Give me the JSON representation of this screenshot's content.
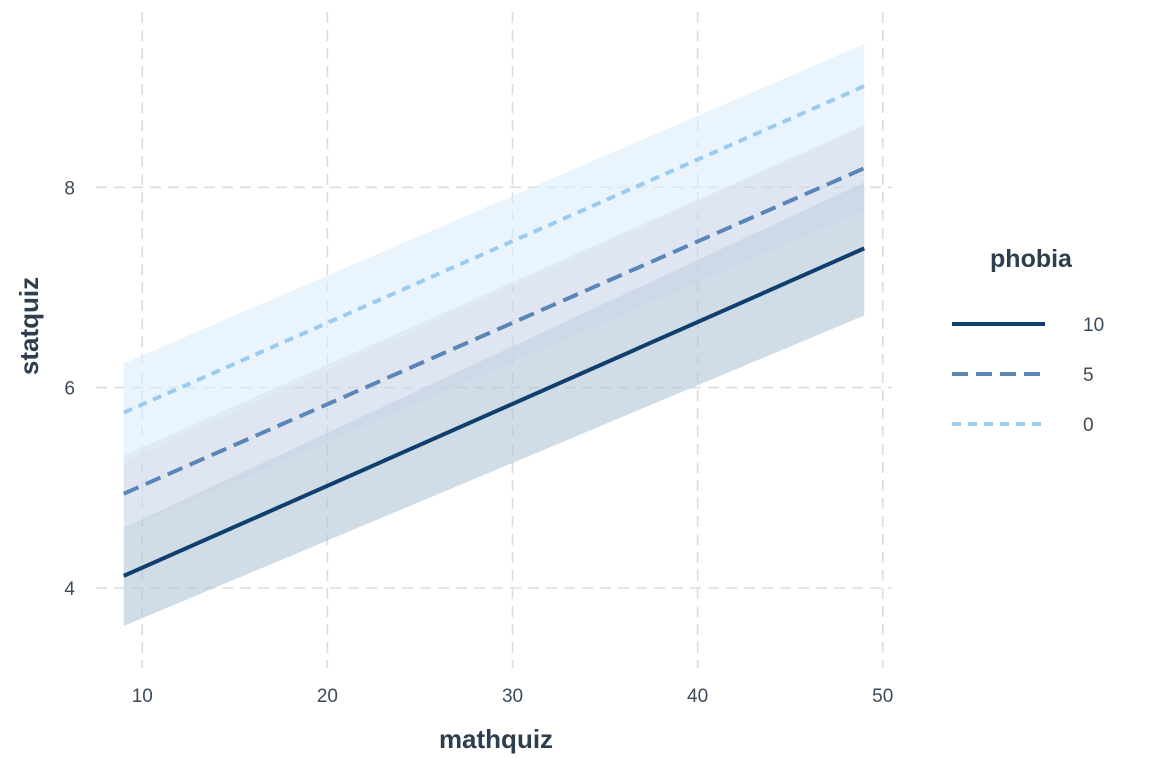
{
  "chart_data": {
    "type": "line",
    "title": "",
    "xlabel": "mathquiz",
    "ylabel": "statquiz",
    "xlim": [
      7.5,
      50.5
    ],
    "ylim": [
      3.2,
      9.75
    ],
    "x_ticks": [
      10,
      20,
      30,
      40,
      50
    ],
    "y_ticks": [
      4,
      6,
      8
    ],
    "grid": true,
    "legend": {
      "title": "phobia",
      "placement": "right"
    },
    "series": [
      {
        "name": "10",
        "color": "#0e3f6e",
        "band_color": "#b3c6d6",
        "dash": "solid",
        "x": [
          9,
          49
        ],
        "y": [
          4.12,
          7.39
        ],
        "lower": [
          3.62,
          6.72
        ],
        "upper": [
          4.6,
          8.05
        ]
      },
      {
        "name": "5",
        "color": "#5a85b8",
        "band_color": "#ccd6e8",
        "dash": "dashed",
        "x": [
          9,
          49
        ],
        "y": [
          4.94,
          8.19
        ],
        "lower": [
          4.58,
          7.77
        ],
        "upper": [
          5.32,
          8.62
        ]
      },
      {
        "name": "0",
        "color": "#9ccbf0",
        "band_color": "#dcedfb",
        "dash": "dotted",
        "x": [
          9,
          49
        ],
        "y": [
          5.75,
          9.01
        ],
        "lower": [
          5.26,
          8.6
        ],
        "upper": [
          6.24,
          9.43
        ]
      }
    ]
  }
}
